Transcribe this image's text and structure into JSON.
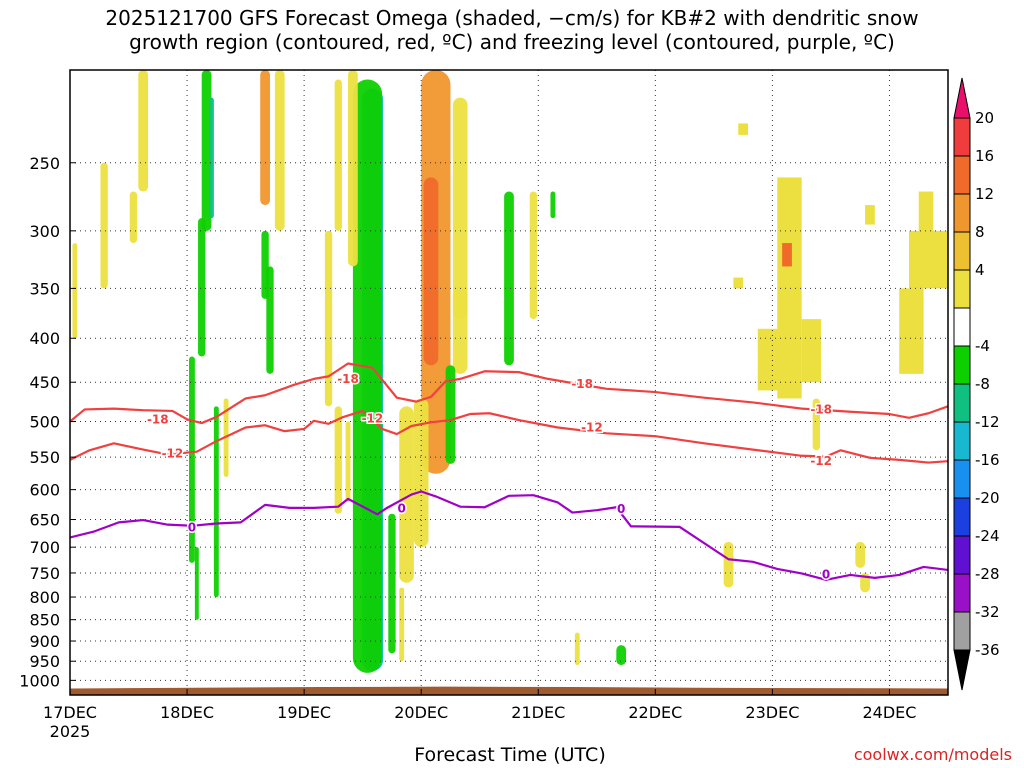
{
  "title": {
    "line1": "2025121700 GFS Forecast Omega (shaded, −cm/s) for KB#2 with dendritic snow",
    "line2": "growth region (contoured, red, ºC) and freezing level (contoured, purple, ºC)"
  },
  "credit": "coolwx.com/models",
  "chart_data": {
    "type": "heatmap",
    "xlabel": "Forecast Time (UTC)",
    "ylabel": "",
    "x_ticks": [
      "17DEC",
      "18DEC",
      "19DEC",
      "20DEC",
      "21DEC",
      "22DEC",
      "23DEC",
      "24DEC"
    ],
    "x_year_label": "2025",
    "y_ticks": [
      250,
      300,
      350,
      400,
      450,
      500,
      550,
      600,
      650,
      700,
      750,
      800,
      850,
      900,
      950,
      1000
    ],
    "y_scale": "log-pressure",
    "y_range_hpa": [
      1040,
      195
    ],
    "x_range_hours": [
      0,
      180
    ],
    "grid": "dotted",
    "colorbar": {
      "labels": [
        "20",
        "16",
        "12",
        "8",
        "4",
        "-4",
        "-8",
        "-12",
        "-16",
        "-20",
        "-24",
        "-28",
        "-32",
        "-36"
      ],
      "colors": [
        "#e8106a",
        "#f03c3c",
        "#f06a2a",
        "#f0962e",
        "#ecc030",
        "#ece040",
        "#ffffff",
        "#0ed000",
        "#10c080",
        "#18b8d0",
        "#1890f0",
        "#1c40e0",
        "#6010d0",
        "#9a10c8",
        "#a0a0a0",
        "#000000"
      ]
    },
    "series": [
      {
        "name": "-18",
        "color": "#f04040",
        "x": [
          0,
          3,
          9,
          15,
          21,
          24,
          27,
          30,
          36,
          40,
          46,
          50,
          53,
          57,
          62,
          67,
          71,
          74,
          77,
          80,
          85,
          92,
          98,
          104,
          110,
          120,
          130,
          140,
          150,
          160,
          168,
          172,
          176,
          180
        ],
        "y": [
          500,
          484,
          483,
          485,
          486,
          497,
          502,
          494,
          470,
          466,
          453,
          446,
          443,
          428,
          433,
          469,
          474,
          468,
          449,
          446,
          437,
          438,
          446,
          452,
          458,
          462,
          469,
          475,
          483,
          487,
          490,
          495,
          489,
          480
        ]
      },
      {
        "name": "-12",
        "color": "#f04040",
        "x": [
          0,
          4,
          9,
          15,
          20,
          26,
          30,
          36,
          40,
          44,
          48,
          50,
          53,
          56,
          60,
          64,
          67,
          70,
          74,
          78,
          82,
          86,
          92,
          100,
          110,
          120,
          130,
          140,
          150,
          155,
          158,
          164,
          170,
          176,
          180
        ],
        "y": [
          554,
          540,
          530,
          539,
          546,
          542,
          527,
          508,
          505,
          513,
          510,
          499,
          503,
          494,
          486,
          510,
          517,
          506,
          501,
          498,
          490,
          489,
          498,
          508,
          516,
          520,
          530,
          539,
          548,
          549,
          540,
          551,
          554,
          558,
          556
        ]
      },
      {
        "name": "0",
        "color": "#a000c8",
        "x": [
          0,
          5,
          10,
          15,
          20,
          25,
          30,
          35,
          40,
          45,
          50,
          55,
          57,
          63,
          65,
          70,
          72,
          75,
          80,
          85,
          90,
          95,
          100,
          103,
          108,
          112,
          115,
          125,
          135,
          140,
          145,
          150,
          155,
          160,
          165,
          170,
          175,
          180
        ],
        "y": [
          682,
          671,
          655,
          651,
          659,
          661,
          657,
          655,
          625,
          630,
          630,
          628,
          615,
          641,
          630,
          608,
          603,
          611,
          628,
          629,
          610,
          609,
          621,
          638,
          634,
          629,
          662,
          663,
          723,
          728,
          742,
          751,
          764,
          754,
          760,
          754,
          738,
          744
        ]
      }
    ],
    "contour_labels": [
      {
        "text": "-18",
        "x": 18,
        "y": 497
      },
      {
        "text": "-18",
        "x": 57,
        "y": 446
      },
      {
        "text": "-18",
        "x": 105,
        "y": 452
      },
      {
        "text": "-18",
        "x": 154,
        "y": 484
      },
      {
        "text": "-12",
        "x": 21,
        "y": 545
      },
      {
        "text": "-12",
        "x": 62,
        "y": 496
      },
      {
        "text": "-12",
        "x": 107,
        "y": 508
      },
      {
        "text": "-12",
        "x": 154,
        "y": 556
      },
      {
        "text": "0",
        "x": 25,
        "y": 664
      },
      {
        "text": "0",
        "x": 68,
        "y": 631
      },
      {
        "text": "0",
        "x": 113,
        "y": 632
      },
      {
        "text": "0",
        "x": 155,
        "y": 753
      }
    ],
    "omega_features": [
      {
        "x": 62,
        "top": 240,
        "bottom": 965,
        "width": 1.6,
        "value": -36,
        "color": "#000000"
      },
      {
        "x": 62,
        "top": 205,
        "bottom": 965,
        "width": 3.0,
        "value": -28,
        "color": "#9a10c8"
      },
      {
        "x": 62,
        "top": 205,
        "bottom": 975,
        "width": 4.4,
        "value": -12,
        "color": "#18b8d0"
      },
      {
        "x": 61,
        "top": 200,
        "bottom": 980,
        "width": 6.0,
        "value": -8,
        "color": "#0ed000"
      },
      {
        "x": 75,
        "top": 195,
        "bottom": 575,
        "width": 6,
        "value": 8,
        "color": "#f0962e"
      },
      {
        "x": 74,
        "top": 260,
        "bottom": 430,
        "width": 3,
        "value": 12,
        "color": "#f06a2a"
      },
      {
        "x": 69,
        "top": 480,
        "bottom": 770,
        "width": 3,
        "value": 4,
        "color": "#ece040"
      },
      {
        "x": 72,
        "top": 470,
        "bottom": 700,
        "width": 3,
        "value": 4,
        "color": "#ece040"
      },
      {
        "x": 80,
        "top": 210,
        "bottom": 380,
        "width": 3,
        "value": 4,
        "color": "#ece040"
      },
      {
        "x": 90,
        "top": 270,
        "bottom": 430,
        "width": 2,
        "value": -4,
        "color": "#0ed000"
      },
      {
        "x": 80,
        "top": 350,
        "bottom": 440,
        "width": 3,
        "value": 4,
        "color": "#ece040"
      },
      {
        "x": 78,
        "top": 430,
        "bottom": 560,
        "width": 2,
        "value": -4,
        "color": "#0ed000"
      },
      {
        "x": 55,
        "top": 200,
        "bottom": 300,
        "width": 1.5,
        "value": 4,
        "color": "#ece040"
      },
      {
        "x": 53,
        "top": 300,
        "bottom": 480,
        "width": 1.5,
        "value": 4,
        "color": "#ece040"
      },
      {
        "x": 58,
        "top": 195,
        "bottom": 330,
        "width": 2,
        "value": 4,
        "color": "#ece040"
      },
      {
        "x": 43,
        "top": 195,
        "bottom": 300,
        "width": 2,
        "value": 4,
        "color": "#ece040"
      },
      {
        "x": 40,
        "top": 195,
        "bottom": 280,
        "width": 2,
        "value": 8,
        "color": "#f0962e"
      },
      {
        "x": 28,
        "top": 195,
        "bottom": 300,
        "width": 2,
        "value": -4,
        "color": "#0ed000"
      },
      {
        "x": 29,
        "top": 210,
        "bottom": 290,
        "width": 1,
        "value": -12,
        "color": "#10c080"
      },
      {
        "x": 27,
        "top": 290,
        "bottom": 420,
        "width": 1.5,
        "value": -4,
        "color": "#0ed000"
      },
      {
        "x": 40,
        "top": 300,
        "bottom": 360,
        "width": 1.5,
        "value": -4,
        "color": "#0ed000"
      },
      {
        "x": 41,
        "top": 330,
        "bottom": 440,
        "width": 1.5,
        "value": -4,
        "color": "#0ed000"
      },
      {
        "x": 15,
        "top": 195,
        "bottom": 270,
        "width": 2,
        "value": 4,
        "color": "#ece040"
      },
      {
        "x": 13,
        "top": 270,
        "bottom": 310,
        "width": 1.5,
        "value": 4,
        "color": "#ece040"
      },
      {
        "x": 7,
        "top": 250,
        "bottom": 350,
        "width": 1.5,
        "value": 4,
        "color": "#ece040"
      },
      {
        "x": 1,
        "top": 310,
        "bottom": 400,
        "width": 1,
        "value": 4,
        "color": "#ece040"
      },
      {
        "x": 25,
        "top": 420,
        "bottom": 730,
        "width": 1.2,
        "value": -4,
        "color": "#0ed000"
      },
      {
        "x": 30,
        "top": 480,
        "bottom": 800,
        "width": 1,
        "value": -4,
        "color": "#0ed000"
      },
      {
        "x": 26,
        "top": 700,
        "bottom": 850,
        "width": 0.8,
        "value": -4,
        "color": "#0ed000"
      },
      {
        "x": 32,
        "top": 470,
        "bottom": 580,
        "width": 1,
        "value": 4,
        "color": "#ece040"
      },
      {
        "x": 55,
        "top": 480,
        "bottom": 640,
        "width": 1.5,
        "value": 4,
        "color": "#ece040"
      },
      {
        "x": 57,
        "top": 500,
        "bottom": 620,
        "width": 1,
        "value": 4,
        "color": "#ece040"
      },
      {
        "x": 66,
        "top": 640,
        "bottom": 930,
        "width": 1.5,
        "value": -4,
        "color": "#0ed000"
      },
      {
        "x": 68,
        "top": 780,
        "bottom": 950,
        "width": 1,
        "value": 4,
        "color": "#ece040"
      },
      {
        "x": 95,
        "top": 270,
        "bottom": 380,
        "width": 1.5,
        "value": 4,
        "color": "#ece040"
      },
      {
        "x": 99,
        "top": 270,
        "bottom": 290,
        "width": 1,
        "value": -4,
        "color": "#0ed000"
      },
      {
        "x": 113,
        "top": 910,
        "bottom": 960,
        "width": 2,
        "value": -4,
        "color": "#0ed000"
      },
      {
        "x": 104,
        "top": 880,
        "bottom": 960,
        "width": 1,
        "value": 4,
        "color": "#ece040"
      },
      {
        "x": 135,
        "top": 690,
        "bottom": 780,
        "width": 2,
        "value": 4,
        "color": "#ece040"
      },
      {
        "x": 162,
        "top": 690,
        "bottom": 740,
        "width": 2,
        "value": 4,
        "color": "#ece040"
      },
      {
        "x": 163,
        "top": 750,
        "bottom": 790,
        "width": 2,
        "value": 4,
        "color": "#ece040"
      },
      {
        "x": 153,
        "top": 470,
        "bottom": 540,
        "width": 1.5,
        "value": 4,
        "color": "#ece040"
      }
    ],
    "omega_patches": [
      {
        "x0": 145,
        "x1": 150,
        "top": 260,
        "bottom": 470,
        "value": 4,
        "color": "#ece040"
      },
      {
        "x0": 141,
        "x1": 146,
        "top": 390,
        "bottom": 460,
        "value": 4,
        "color": "#ece040"
      },
      {
        "x0": 150,
        "x1": 154,
        "top": 380,
        "bottom": 450,
        "value": 4,
        "color": "#ece040"
      },
      {
        "x0": 172,
        "x1": 180,
        "top": 300,
        "bottom": 350,
        "value": 4,
        "color": "#ece040"
      },
      {
        "x0": 170,
        "x1": 175,
        "top": 350,
        "bottom": 440,
        "value": 4,
        "color": "#ece040"
      },
      {
        "x0": 174,
        "x1": 177,
        "top": 270,
        "bottom": 310,
        "value": 4,
        "color": "#ece040"
      },
      {
        "x0": 146,
        "x1": 148,
        "top": 310,
        "bottom": 330,
        "value": 12,
        "color": "#f06a2a"
      },
      {
        "x0": 136,
        "x1": 138,
        "top": 340,
        "bottom": 350,
        "value": 4,
        "color": "#ece040"
      },
      {
        "x0": 137,
        "x1": 139,
        "top": 225,
        "bottom": 232,
        "value": 4,
        "color": "#ece040"
      },
      {
        "x0": 163,
        "x1": 165,
        "top": 280,
        "bottom": 295,
        "value": 4,
        "color": "#ece040"
      }
    ],
    "terrain": {
      "color": "#a05a30",
      "pressure_hpa": [
        1022,
        1020,
        1018,
        1017,
        1018,
        1020,
        1021,
        1022
      ]
    }
  }
}
